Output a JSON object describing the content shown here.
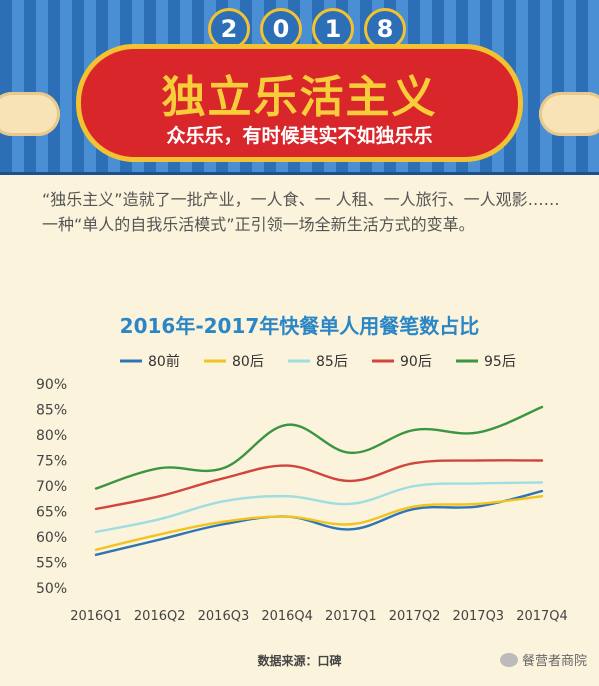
{
  "banner": {
    "year_digits": [
      "2",
      "0",
      "1",
      "8"
    ],
    "title": "独立乐活主义",
    "subtitle": "众乐乐，有时候其实不如独乐乐"
  },
  "intro": {
    "text": "“独乐主义”造就了一批产业，一人食、一 人租、一人旅行、一人观影……一种“单人的自我乐活模式”正引领一场全新生活方式的变革。"
  },
  "chart_data": {
    "type": "line",
    "title": "2016年-2017年快餐单人用餐笔数占比",
    "categories": [
      "2016Q1",
      "2016Q2",
      "2016Q3",
      "2016Q4",
      "2017Q1",
      "2017Q2",
      "2017Q3",
      "2017Q4"
    ],
    "y_ticks": [
      "90%",
      "85%",
      "80%",
      "75%",
      "70%",
      "65%",
      "60%",
      "55%",
      "50%"
    ],
    "ylim": [
      50,
      90
    ],
    "legend_position": "top",
    "series": [
      {
        "name": "80前",
        "color": "#2e75b6",
        "values": [
          56.5,
          59.5,
          62.5,
          64.0,
          61.5,
          65.5,
          66.0,
          69.0
        ]
      },
      {
        "name": "80后",
        "color": "#f2c31f",
        "values": [
          57.5,
          60.5,
          63.0,
          64.0,
          62.5,
          66.0,
          66.5,
          68.0
        ]
      },
      {
        "name": "85后",
        "color": "#9fdde0",
        "values": [
          61.0,
          63.5,
          67.0,
          68.0,
          66.5,
          70.0,
          70.5,
          70.7
        ]
      },
      {
        "name": "90后",
        "color": "#d0463c",
        "values": [
          65.5,
          68.0,
          71.5,
          74.0,
          71.0,
          74.5,
          75.0,
          75.0
        ]
      },
      {
        "name": "95后",
        "color": "#3a9641",
        "values": [
          69.5,
          73.5,
          73.5,
          82.0,
          76.5,
          81.0,
          80.5,
          85.5
        ]
      }
    ]
  },
  "footer": {
    "source": "数据来源：口碑",
    "watermark": "餐营者商院"
  }
}
